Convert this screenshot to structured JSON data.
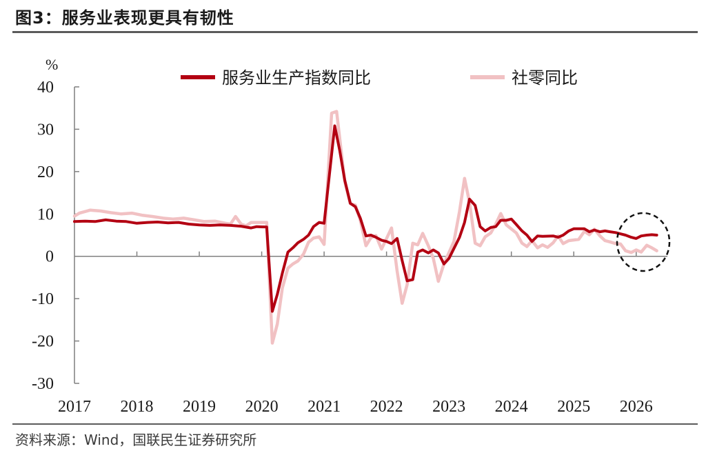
{
  "header": {
    "title": "图3：服务业表现更具有韧性"
  },
  "footer": {
    "source": "资料来源：Wind，国联民生证券研究所"
  },
  "colors": {
    "services": "#b30012",
    "retail": "#f1c1c3",
    "axis": "#7f7f7f",
    "highlight": "#111111"
  },
  "chart_data": {
    "type": "line",
    "title": "图3：服务业表现更具有韧性",
    "unit_label": "%",
    "ylim": [
      -30,
      40
    ],
    "yticks": [
      40,
      30,
      20,
      10,
      0,
      -10,
      -20,
      -30
    ],
    "xlim": [
      2017,
      2026.5
    ],
    "x_tick_labels": [
      "2017",
      "2018",
      "2019",
      "2020",
      "2021",
      "2022",
      "2023",
      "2024",
      "2025",
      "2026"
    ],
    "grid": false,
    "legend_position": "top",
    "annotation": "dashed circle highlighting late 2025 – early 2026",
    "series": [
      {
        "name": "服务业生产指数同比",
        "color": "#b30012",
        "points": [
          [
            2017.0,
            8.2
          ],
          [
            2017.17,
            8.3
          ],
          [
            2017.33,
            8.2
          ],
          [
            2017.5,
            8.6
          ],
          [
            2017.67,
            8.3
          ],
          [
            2017.83,
            8.2
          ],
          [
            2018.0,
            7.8
          ],
          [
            2018.17,
            8.0
          ],
          [
            2018.33,
            8.1
          ],
          [
            2018.5,
            7.9
          ],
          [
            2018.67,
            8.0
          ],
          [
            2018.83,
            7.6
          ],
          [
            2019.0,
            7.4
          ],
          [
            2019.17,
            7.3
          ],
          [
            2019.33,
            7.4
          ],
          [
            2019.5,
            7.3
          ],
          [
            2019.67,
            7.1
          ],
          [
            2019.83,
            6.7
          ],
          [
            2019.92,
            7.0
          ],
          [
            2020.08,
            6.9
          ],
          [
            2020.17,
            -13.0
          ],
          [
            2020.25,
            -9.0
          ],
          [
            2020.33,
            -4.0
          ],
          [
            2020.42,
            1.0
          ],
          [
            2020.5,
            2.0
          ],
          [
            2020.58,
            3.2
          ],
          [
            2020.67,
            4.0
          ],
          [
            2020.75,
            5.0
          ],
          [
            2020.83,
            7.0
          ],
          [
            2020.92,
            8.0
          ],
          [
            2021.0,
            7.8
          ],
          [
            2021.17,
            30.8
          ],
          [
            2021.25,
            25.0
          ],
          [
            2021.33,
            18.0
          ],
          [
            2021.42,
            12.5
          ],
          [
            2021.5,
            11.7
          ],
          [
            2021.58,
            9.0
          ],
          [
            2021.67,
            4.8
          ],
          [
            2021.75,
            5.0
          ],
          [
            2021.83,
            4.5
          ],
          [
            2021.92,
            3.8
          ],
          [
            2022.0,
            3.5
          ],
          [
            2022.08,
            3.0
          ],
          [
            2022.17,
            4.2
          ],
          [
            2022.25,
            -1.0
          ],
          [
            2022.33,
            -5.8
          ],
          [
            2022.42,
            -5.5
          ],
          [
            2022.5,
            1.0
          ],
          [
            2022.58,
            1.5
          ],
          [
            2022.67,
            0.8
          ],
          [
            2022.75,
            1.5
          ],
          [
            2022.83,
            0.8
          ],
          [
            2022.92,
            -1.8
          ],
          [
            2023.0,
            -0.5
          ],
          [
            2023.17,
            4.5
          ],
          [
            2023.25,
            8.0
          ],
          [
            2023.33,
            13.5
          ],
          [
            2023.42,
            12.0
          ],
          [
            2023.5,
            7.0
          ],
          [
            2023.58,
            6.0
          ],
          [
            2023.67,
            6.8
          ],
          [
            2023.75,
            7.0
          ],
          [
            2023.83,
            8.5
          ],
          [
            2023.92,
            8.5
          ],
          [
            2024.0,
            8.8
          ],
          [
            2024.08,
            7.5
          ],
          [
            2024.17,
            6.0
          ],
          [
            2024.25,
            5.0
          ],
          [
            2024.33,
            3.5
          ],
          [
            2024.42,
            4.8
          ],
          [
            2024.5,
            4.7
          ],
          [
            2024.67,
            4.8
          ],
          [
            2024.75,
            4.5
          ],
          [
            2024.83,
            5.0
          ],
          [
            2024.92,
            6.0
          ],
          [
            2025.0,
            6.5
          ],
          [
            2025.17,
            6.5
          ],
          [
            2025.25,
            5.8
          ],
          [
            2025.33,
            6.2
          ],
          [
            2025.42,
            5.8
          ],
          [
            2025.5,
            6.0
          ],
          [
            2025.58,
            5.8
          ],
          [
            2025.67,
            5.6
          ],
          [
            2025.75,
            5.3
          ],
          [
            2025.83,
            5.0
          ],
          [
            2025.92,
            4.5
          ],
          [
            2026.0,
            4.2
          ],
          [
            2026.08,
            4.8
          ],
          [
            2026.17,
            5.0
          ],
          [
            2026.25,
            5.1
          ],
          [
            2026.33,
            5.0
          ]
        ]
      },
      {
        "name": "社零同比",
        "color": "#f1c1c3",
        "points": [
          [
            2017.0,
            9.5
          ],
          [
            2017.08,
            10.2
          ],
          [
            2017.25,
            10.9
          ],
          [
            2017.42,
            10.7
          ],
          [
            2017.58,
            10.3
          ],
          [
            2017.75,
            10.0
          ],
          [
            2017.92,
            10.2
          ],
          [
            2018.08,
            9.7
          ],
          [
            2018.25,
            9.4
          ],
          [
            2018.42,
            9.0
          ],
          [
            2018.58,
            8.8
          ],
          [
            2018.75,
            9.0
          ],
          [
            2018.92,
            8.6
          ],
          [
            2019.08,
            8.2
          ],
          [
            2019.25,
            8.3
          ],
          [
            2019.42,
            7.8
          ],
          [
            2019.5,
            7.6
          ],
          [
            2019.58,
            9.4
          ],
          [
            2019.67,
            7.6
          ],
          [
            2019.75,
            7.2
          ],
          [
            2019.83,
            8.0
          ],
          [
            2019.92,
            8.0
          ],
          [
            2020.08,
            8.0
          ],
          [
            2020.17,
            -20.5
          ],
          [
            2020.25,
            -16.0
          ],
          [
            2020.33,
            -7.5
          ],
          [
            2020.42,
            -2.8
          ],
          [
            2020.5,
            -1.8
          ],
          [
            2020.58,
            -1.1
          ],
          [
            2020.67,
            0.5
          ],
          [
            2020.75,
            3.3
          ],
          [
            2020.83,
            4.3
          ],
          [
            2020.92,
            4.6
          ],
          [
            2021.0,
            2.8
          ],
          [
            2021.12,
            33.8
          ],
          [
            2021.2,
            34.2
          ],
          [
            2021.33,
            17.7
          ],
          [
            2021.42,
            12.4
          ],
          [
            2021.5,
            12.1
          ],
          [
            2021.58,
            8.5
          ],
          [
            2021.67,
            2.5
          ],
          [
            2021.75,
            4.4
          ],
          [
            2021.83,
            4.9
          ],
          [
            2021.92,
            1.7
          ],
          [
            2022.08,
            6.7
          ],
          [
            2022.17,
            -3.5
          ],
          [
            2022.25,
            -11.1
          ],
          [
            2022.33,
            -6.7
          ],
          [
            2022.42,
            3.1
          ],
          [
            2022.5,
            2.7
          ],
          [
            2022.58,
            5.4
          ],
          [
            2022.67,
            2.5
          ],
          [
            2022.75,
            -0.5
          ],
          [
            2022.83,
            -5.9
          ],
          [
            2022.92,
            -1.8
          ],
          [
            2023.08,
            3.5
          ],
          [
            2023.17,
            10.6
          ],
          [
            2023.25,
            18.4
          ],
          [
            2023.33,
            12.7
          ],
          [
            2023.42,
            3.1
          ],
          [
            2023.5,
            2.5
          ],
          [
            2023.58,
            4.6
          ],
          [
            2023.67,
            5.5
          ],
          [
            2023.75,
            7.6
          ],
          [
            2023.83,
            10.1
          ],
          [
            2023.92,
            7.4
          ],
          [
            2024.08,
            5.5
          ],
          [
            2024.17,
            3.1
          ],
          [
            2024.25,
            2.3
          ],
          [
            2024.33,
            3.7
          ],
          [
            2024.42,
            2.0
          ],
          [
            2024.5,
            2.7
          ],
          [
            2024.58,
            2.1
          ],
          [
            2024.67,
            3.2
          ],
          [
            2024.75,
            4.8
          ],
          [
            2024.83,
            3.0
          ],
          [
            2024.92,
            3.7
          ],
          [
            2025.08,
            4.0
          ],
          [
            2025.17,
            5.9
          ],
          [
            2025.25,
            5.1
          ],
          [
            2025.33,
            6.4
          ],
          [
            2025.42,
            4.8
          ],
          [
            2025.5,
            3.7
          ],
          [
            2025.58,
            3.4
          ],
          [
            2025.67,
            3.0
          ],
          [
            2025.75,
            2.9
          ],
          [
            2025.83,
            1.3
          ],
          [
            2025.92,
            0.9
          ],
          [
            2026.0,
            1.5
          ],
          [
            2026.08,
            1.0
          ],
          [
            2026.17,
            2.6
          ],
          [
            2026.25,
            2.0
          ],
          [
            2026.33,
            1.3
          ]
        ]
      }
    ]
  }
}
